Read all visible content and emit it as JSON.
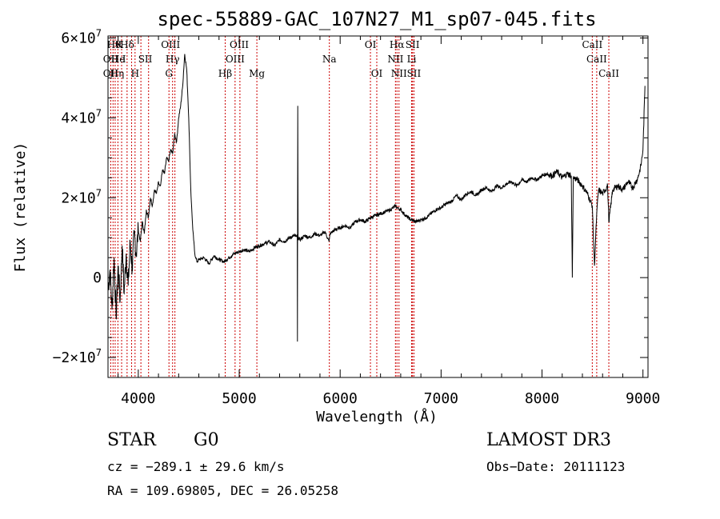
{
  "chart_data": {
    "type": "line",
    "title": "spec-55889-GAC_107N27_M1_sp07-045.fits",
    "xlabel": "Wavelength (Å)",
    "ylabel": "Flux (relative)",
    "xlim": [
      3700,
      9050
    ],
    "ylim": [
      -25000000,
      60500000
    ],
    "x_ticks": [
      {
        "value": 4000,
        "label": "4000"
      },
      {
        "value": 5000,
        "label": "5000"
      },
      {
        "value": 6000,
        "label": "6000"
      },
      {
        "value": 7000,
        "label": "7000"
      },
      {
        "value": 8000,
        "label": "8000"
      },
      {
        "value": 9000,
        "label": "9000"
      }
    ],
    "y_ticks": [
      {
        "value": -20000000,
        "label": "−2×10",
        "exp": "7"
      },
      {
        "value": 0,
        "label": "0",
        "exp": ""
      },
      {
        "value": 20000000,
        "label": "2×10",
        "exp": "7"
      },
      {
        "value": 40000000,
        "label": "4×10",
        "exp": "7"
      },
      {
        "value": 60000000,
        "label": "6×10",
        "exp": "7"
      }
    ],
    "series": [
      {
        "name": "flux",
        "x": [
          3700,
          3720,
          3740,
          3760,
          3780,
          3800,
          3820,
          3840,
          3860,
          3880,
          3900,
          3920,
          3940,
          3960,
          3980,
          4000,
          4020,
          4040,
          4060,
          4080,
          4100,
          4120,
          4140,
          4160,
          4180,
          4200,
          4220,
          4240,
          4260,
          4280,
          4300,
          4320,
          4340,
          4360,
          4380,
          4400,
          4420,
          4440,
          4460,
          4480,
          4500,
          4520,
          4540,
          4560,
          4580,
          4600,
          4650,
          4700,
          4750,
          4800,
          4850,
          4900,
          4950,
          5000,
          5050,
          5100,
          5150,
          5200,
          5250,
          5300,
          5350,
          5400,
          5450,
          5500,
          5550,
          5575,
          5577,
          5580,
          5583,
          5600,
          5650,
          5700,
          5750,
          5800,
          5850,
          5890,
          5900,
          5950,
          6000,
          6050,
          6100,
          6150,
          6200,
          6250,
          6300,
          6350,
          6400,
          6450,
          6500,
          6550,
          6563,
          6600,
          6650,
          6700,
          6750,
          6800,
          6850,
          6900,
          6950,
          7000,
          7050,
          7100,
          7150,
          7200,
          7250,
          7300,
          7350,
          7400,
          7450,
          7500,
          7550,
          7600,
          7650,
          7700,
          7750,
          7800,
          7850,
          7900,
          7950,
          8000,
          8050,
          8100,
          8150,
          8200,
          8250,
          8290,
          8300,
          8310,
          8350,
          8400,
          8450,
          8498,
          8520,
          8542,
          8560,
          8600,
          8650,
          8662,
          8700,
          8750,
          8800,
          8850,
          8900,
          8950,
          8980,
          9000,
          9020
        ],
        "values": [
          -3000000,
          2000000,
          -8000000,
          5000000,
          -10000000,
          3000000,
          -6000000,
          8000000,
          -4000000,
          6000000,
          -2000000,
          9000000,
          2000000,
          11000000,
          6000000,
          12000000,
          9000000,
          14000000,
          11000000,
          17000000,
          15000000,
          20000000,
          18000000,
          22000000,
          21000000,
          24000000,
          23000000,
          27000000,
          26000000,
          30000000,
          29000000,
          32000000,
          31000000,
          36000000,
          34000000,
          40000000,
          43000000,
          48000000,
          56000000,
          52000000,
          40000000,
          22000000,
          12000000,
          6000000,
          4000000,
          4500000,
          5000000,
          3500000,
          5500000,
          4500000,
          4000000,
          5000000,
          6000000,
          6500000,
          7000000,
          6500000,
          7500000,
          8000000,
          8500000,
          9000000,
          8000000,
          9500000,
          9000000,
          10000000,
          10500000,
          10000000,
          -16000000,
          43000000,
          10000000,
          9500000,
          10500000,
          10000000,
          11000000,
          10500000,
          11500000,
          9000000,
          11000000,
          12000000,
          12500000,
          13000000,
          12500000,
          14000000,
          14500000,
          14000000,
          15000000,
          15500000,
          16000000,
          16500000,
          17000000,
          18000000,
          17500000,
          17000000,
          15500000,
          14500000,
          14000000,
          14500000,
          15000000,
          16000000,
          17000000,
          17500000,
          18500000,
          19000000,
          20500000,
          19500000,
          21000000,
          21500000,
          20500000,
          22000000,
          22500000,
          21500000,
          23000000,
          22500000,
          23500000,
          24000000,
          23000000,
          24500000,
          24000000,
          25000000,
          24500000,
          25500000,
          26000000,
          25500000,
          26500000,
          25000000,
          26000000,
          25500000,
          0,
          25000000,
          24500000,
          23000000,
          21000000,
          18000000,
          3000000,
          16000000,
          22000000,
          21000000,
          23000000,
          14000000,
          22000000,
          23000000,
          22000000,
          24000000,
          22500000,
          25000000,
          28000000,
          32000000,
          48000000
        ]
      }
    ],
    "line_labels": [
      {
        "wave": 3760,
        "row": 0,
        "text": "Hθ"
      },
      {
        "wave": 3810,
        "row": 0,
        "text": "K"
      },
      {
        "wave": 3890,
        "row": 0,
        "text": "Hδ"
      },
      {
        "wave": 4320,
        "row": 0,
        "text": "OIII"
      },
      {
        "wave": 5000,
        "row": 0,
        "text": "OIII"
      },
      {
        "wave": 6300,
        "row": 0,
        "text": "OI"
      },
      {
        "wave": 6563,
        "row": 0,
        "text": "Hα"
      },
      {
        "wave": 6717,
        "row": 0,
        "text": "SII"
      },
      {
        "wave": 8498,
        "row": 0,
        "text": "CaII"
      },
      {
        "wave": 3727,
        "row": 1,
        "text": "OII"
      },
      {
        "wave": 3800,
        "row": 1,
        "text": "He"
      },
      {
        "wave": 3860,
        "row": 1,
        "text": "I"
      },
      {
        "wave": 4069,
        "row": 1,
        "text": "SII"
      },
      {
        "wave": 4340,
        "row": 1,
        "text": "Hγ"
      },
      {
        "wave": 4959,
        "row": 1,
        "text": "OIII"
      },
      {
        "wave": 5893,
        "row": 1,
        "text": "Na"
      },
      {
        "wave": 6548,
        "row": 1,
        "text": "NII"
      },
      {
        "wave": 6708,
        "row": 1,
        "text": "Li"
      },
      {
        "wave": 8542,
        "row": 1,
        "text": "CaII"
      },
      {
        "wave": 3727,
        "row": 2,
        "text": "OII"
      },
      {
        "wave": 3790,
        "row": 2,
        "text": "Hη"
      },
      {
        "wave": 3968,
        "row": 2,
        "text": "H"
      },
      {
        "wave": 4304,
        "row": 2,
        "text": "G"
      },
      {
        "wave": 4861,
        "row": 2,
        "text": "Hβ"
      },
      {
        "wave": 5175,
        "row": 2,
        "text": "Mg"
      },
      {
        "wave": 6363,
        "row": 2,
        "text": "OI"
      },
      {
        "wave": 6583,
        "row": 2,
        "text": "NII"
      },
      {
        "wave": 6731,
        "row": 2,
        "text": "SII"
      },
      {
        "wave": 8662,
        "row": 2,
        "text": "CaII"
      }
    ],
    "line_markers": [
      3727,
      3750,
      3771,
      3798,
      3835,
      3889,
      3934,
      3968,
      4026,
      4102,
      4304,
      4340,
      4363,
      4861,
      4959,
      5007,
      5175,
      5893,
      6300,
      6363,
      6548,
      6563,
      6583,
      6708,
      6717,
      6731,
      8498,
      8542,
      8662
    ]
  },
  "info": {
    "class_label": "STAR",
    "subclass": "G0",
    "survey": "LAMOST DR3",
    "cz": "cz = −289.1 ± 29.6 km/s",
    "obs_date": "Obs−Date: 20111123",
    "coords": "RA = 109.69805, DEC =  26.05258"
  },
  "colors": {
    "marker": "#cc0000",
    "ink": "#000000"
  }
}
